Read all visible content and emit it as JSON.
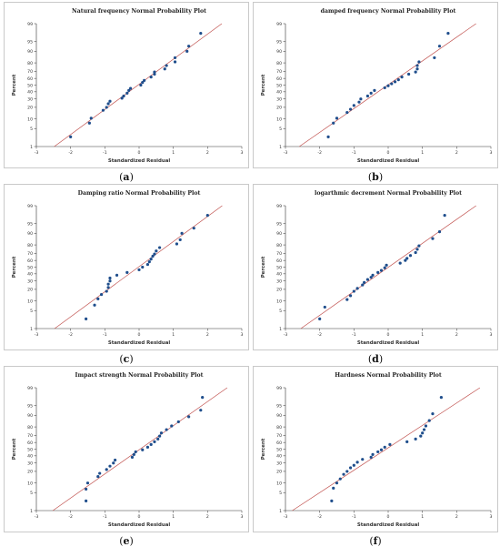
{
  "chart_data": [
    {
      "type": "scatter",
      "caption": "a",
      "title": "Natural frequency Normal Probability Plot",
      "xlabel": "Standardized Residual",
      "ylabel": "Percent",
      "xlim": [
        -3.0,
        3.0
      ],
      "x_ticks": [
        "-3",
        "-2",
        "-1",
        "0",
        "1",
        "2",
        "3"
      ],
      "y_ticks": [
        "1",
        "5",
        "10",
        "20",
        "30",
        "40",
        "50",
        "60",
        "70",
        "80",
        "90",
        "95",
        "99"
      ],
      "fit_line": true,
      "points": [
        {
          "x": -2.0,
          "y": 2.5
        },
        {
          "x": -1.45,
          "y": 7.5
        },
        {
          "x": -1.4,
          "y": 10.5
        },
        {
          "x": -1.05,
          "y": 17
        },
        {
          "x": -0.95,
          "y": 20
        },
        {
          "x": -0.9,
          "y": 24
        },
        {
          "x": -0.85,
          "y": 27
        },
        {
          "x": -0.5,
          "y": 31
        },
        {
          "x": -0.45,
          "y": 34
        },
        {
          "x": -0.35,
          "y": 38
        },
        {
          "x": -0.3,
          "y": 42
        },
        {
          "x": -0.25,
          "y": 45
        },
        {
          "x": 0.05,
          "y": 50
        },
        {
          "x": 0.1,
          "y": 54
        },
        {
          "x": 0.15,
          "y": 57
        },
        {
          "x": 0.35,
          "y": 62
        },
        {
          "x": 0.45,
          "y": 66
        },
        {
          "x": 0.45,
          "y": 69
        },
        {
          "x": 0.75,
          "y": 73
        },
        {
          "x": 0.8,
          "y": 77
        },
        {
          "x": 1.05,
          "y": 81
        },
        {
          "x": 1.05,
          "y": 85
        },
        {
          "x": 1.4,
          "y": 90
        },
        {
          "x": 1.45,
          "y": 93
        },
        {
          "x": 1.8,
          "y": 97.5
        }
      ]
    },
    {
      "type": "scatter",
      "caption": "b",
      "title": "damped frequency Normal Probability Plot",
      "xlabel": "Standardized Residual",
      "ylabel": "Percent",
      "xlim": [
        -3.0,
        3.0
      ],
      "x_ticks": [
        "-3",
        "-2",
        "-1",
        "0",
        "1",
        "2",
        "3"
      ],
      "y_ticks": [
        "1",
        "5",
        "10",
        "20",
        "30",
        "40",
        "50",
        "60",
        "70",
        "80",
        "90",
        "95",
        "99"
      ],
      "fit_line": true,
      "points": [
        {
          "x": -1.75,
          "y": 2.5
        },
        {
          "x": -1.6,
          "y": 7.5
        },
        {
          "x": -1.5,
          "y": 10.5
        },
        {
          "x": -1.2,
          "y": 15
        },
        {
          "x": -1.1,
          "y": 18
        },
        {
          "x": -1.0,
          "y": 22
        },
        {
          "x": -0.85,
          "y": 26
        },
        {
          "x": -0.8,
          "y": 30
        },
        {
          "x": -0.6,
          "y": 34
        },
        {
          "x": -0.5,
          "y": 38
        },
        {
          "x": -0.4,
          "y": 42
        },
        {
          "x": -0.1,
          "y": 46
        },
        {
          "x": 0.0,
          "y": 49
        },
        {
          "x": 0.1,
          "y": 52
        },
        {
          "x": 0.2,
          "y": 55
        },
        {
          "x": 0.3,
          "y": 58
        },
        {
          "x": 0.4,
          "y": 62
        },
        {
          "x": 0.6,
          "y": 66
        },
        {
          "x": 0.8,
          "y": 69
        },
        {
          "x": 0.85,
          "y": 73
        },
        {
          "x": 0.85,
          "y": 77
        },
        {
          "x": 0.9,
          "y": 81
        },
        {
          "x": 1.35,
          "y": 85
        },
        {
          "x": 1.5,
          "y": 93
        },
        {
          "x": 1.75,
          "y": 97.5
        }
      ]
    },
    {
      "type": "scatter",
      "caption": "c",
      "title": "Damping ratio Normal Probability Plot",
      "xlabel": "Standardized Residual",
      "ylabel": "Percent",
      "xlim": [
        -3.0,
        3.0
      ],
      "x_ticks": [
        "-3",
        "-2",
        "-1",
        "0",
        "1",
        "2",
        "3"
      ],
      "y_ticks": [
        "1",
        "5",
        "10",
        "20",
        "30",
        "40",
        "50",
        "60",
        "70",
        "80",
        "90",
        "95",
        "99"
      ],
      "fit_line": true,
      "points": [
        {
          "x": -1.55,
          "y": 2.5
        },
        {
          "x": -1.3,
          "y": 7.5
        },
        {
          "x": -1.2,
          "y": 11.5
        },
        {
          "x": -1.1,
          "y": 15
        },
        {
          "x": -0.95,
          "y": 18
        },
        {
          "x": -0.9,
          "y": 22
        },
        {
          "x": -0.9,
          "y": 26
        },
        {
          "x": -0.85,
          "y": 30
        },
        {
          "x": -0.85,
          "y": 34
        },
        {
          "x": -0.65,
          "y": 38
        },
        {
          "x": -0.35,
          "y": 42
        },
        {
          "x": 0.0,
          "y": 46
        },
        {
          "x": 0.1,
          "y": 50
        },
        {
          "x": 0.25,
          "y": 54
        },
        {
          "x": 0.3,
          "y": 58
        },
        {
          "x": 0.35,
          "y": 62
        },
        {
          "x": 0.4,
          "y": 66
        },
        {
          "x": 0.45,
          "y": 69
        },
        {
          "x": 0.5,
          "y": 73
        },
        {
          "x": 0.6,
          "y": 77
        },
        {
          "x": 1.1,
          "y": 81
        },
        {
          "x": 1.2,
          "y": 85
        },
        {
          "x": 1.25,
          "y": 90
        },
        {
          "x": 1.6,
          "y": 93
        },
        {
          "x": 2.0,
          "y": 97.5
        }
      ]
    },
    {
      "type": "scatter",
      "caption": "d",
      "title": "logarthmic decrement Normal Probability Plot",
      "xlabel": "Standardized Residual",
      "ylabel": "Percent",
      "xlim": [
        -3.0,
        3.0
      ],
      "x_ticks": [
        "-3",
        "-2",
        "-1",
        "0",
        "1",
        "2",
        "3"
      ],
      "y_ticks": [
        "1",
        "5",
        "10",
        "20",
        "30",
        "40",
        "50",
        "60",
        "70",
        "80",
        "90",
        "95",
        "99"
      ],
      "fit_line": true,
      "points": [
        {
          "x": -2.0,
          "y": 2.5
        },
        {
          "x": -1.85,
          "y": 6.5
        },
        {
          "x": -1.2,
          "y": 11
        },
        {
          "x": -1.1,
          "y": 14
        },
        {
          "x": -1.0,
          "y": 18
        },
        {
          "x": -0.9,
          "y": 21
        },
        {
          "x": -0.75,
          "y": 25
        },
        {
          "x": -0.7,
          "y": 28
        },
        {
          "x": -0.6,
          "y": 32
        },
        {
          "x": -0.5,
          "y": 35
        },
        {
          "x": -0.45,
          "y": 38
        },
        {
          "x": -0.3,
          "y": 42
        },
        {
          "x": -0.2,
          "y": 45
        },
        {
          "x": -0.1,
          "y": 49
        },
        {
          "x": -0.05,
          "y": 53
        },
        {
          "x": 0.35,
          "y": 56
        },
        {
          "x": 0.5,
          "y": 60
        },
        {
          "x": 0.55,
          "y": 63
        },
        {
          "x": 0.65,
          "y": 67
        },
        {
          "x": 0.8,
          "y": 71
        },
        {
          "x": 0.85,
          "y": 75
        },
        {
          "x": 0.9,
          "y": 79
        },
        {
          "x": 1.3,
          "y": 86
        },
        {
          "x": 1.5,
          "y": 91
        },
        {
          "x": 1.65,
          "y": 97.5
        }
      ]
    },
    {
      "type": "scatter",
      "caption": "e",
      "title": "Impact strength Normal Probability Plot",
      "xlabel": "Standardized Residual",
      "ylabel": "Percent",
      "xlim": [
        -3.0,
        3.0
      ],
      "x_ticks": [
        "-3",
        "-2",
        "-1",
        "0",
        "1",
        "2",
        "3"
      ],
      "y_ticks": [
        "1",
        "5",
        "10",
        "20",
        "30",
        "40",
        "50",
        "60",
        "70",
        "80",
        "90",
        "95",
        "99"
      ],
      "fit_line": true,
      "points": [
        {
          "x": -1.55,
          "y": 2.5
        },
        {
          "x": -1.55,
          "y": 6.5
        },
        {
          "x": -1.5,
          "y": 10
        },
        {
          "x": -1.2,
          "y": 15
        },
        {
          "x": -1.15,
          "y": 18
        },
        {
          "x": -0.95,
          "y": 22
        },
        {
          "x": -0.85,
          "y": 26
        },
        {
          "x": -0.75,
          "y": 30
        },
        {
          "x": -0.7,
          "y": 34
        },
        {
          "x": -0.2,
          "y": 38
        },
        {
          "x": -0.15,
          "y": 42
        },
        {
          "x": -0.1,
          "y": 46
        },
        {
          "x": 0.1,
          "y": 49
        },
        {
          "x": 0.25,
          "y": 53
        },
        {
          "x": 0.35,
          "y": 57
        },
        {
          "x": 0.45,
          "y": 61
        },
        {
          "x": 0.55,
          "y": 65
        },
        {
          "x": 0.6,
          "y": 69
        },
        {
          "x": 0.65,
          "y": 73
        },
        {
          "x": 0.8,
          "y": 77
        },
        {
          "x": 0.95,
          "y": 81
        },
        {
          "x": 1.15,
          "y": 85
        },
        {
          "x": 1.45,
          "y": 89
        },
        {
          "x": 1.8,
          "y": 93
        },
        {
          "x": 1.85,
          "y": 97.5
        }
      ]
    },
    {
      "type": "scatter",
      "caption": "f",
      "title": "Hardness Normal Probability Plot",
      "xlabel": "Standardized Residual",
      "ylabel": "Percent",
      "xlim": [
        -3.0,
        3.0
      ],
      "x_ticks": [
        "-3",
        "-2",
        "-1",
        "0",
        "1",
        "2",
        "3"
      ],
      "y_ticks": [
        "1",
        "5",
        "10",
        "20",
        "30",
        "40",
        "50",
        "60",
        "70",
        "80",
        "90",
        "95",
        "99"
      ],
      "fit_line": true,
      "points": [
        {
          "x": -1.65,
          "y": 2.5
        },
        {
          "x": -1.6,
          "y": 7
        },
        {
          "x": -1.5,
          "y": 10
        },
        {
          "x": -1.4,
          "y": 13
        },
        {
          "x": -1.3,
          "y": 17
        },
        {
          "x": -1.2,
          "y": 20
        },
        {
          "x": -1.1,
          "y": 24
        },
        {
          "x": -1.0,
          "y": 27
        },
        {
          "x": -0.9,
          "y": 31
        },
        {
          "x": -0.75,
          "y": 35
        },
        {
          "x": -0.5,
          "y": 38
        },
        {
          "x": -0.45,
          "y": 42
        },
        {
          "x": -0.3,
          "y": 46
        },
        {
          "x": -0.2,
          "y": 49
        },
        {
          "x": -0.1,
          "y": 53
        },
        {
          "x": 0.05,
          "y": 57
        },
        {
          "x": 0.55,
          "y": 61
        },
        {
          "x": 0.8,
          "y": 65
        },
        {
          "x": 0.95,
          "y": 69
        },
        {
          "x": 1.0,
          "y": 73
        },
        {
          "x": 1.05,
          "y": 77
        },
        {
          "x": 1.1,
          "y": 81
        },
        {
          "x": 1.2,
          "y": 86
        },
        {
          "x": 1.3,
          "y": 91
        },
        {
          "x": 1.55,
          "y": 97.5
        }
      ]
    }
  ]
}
